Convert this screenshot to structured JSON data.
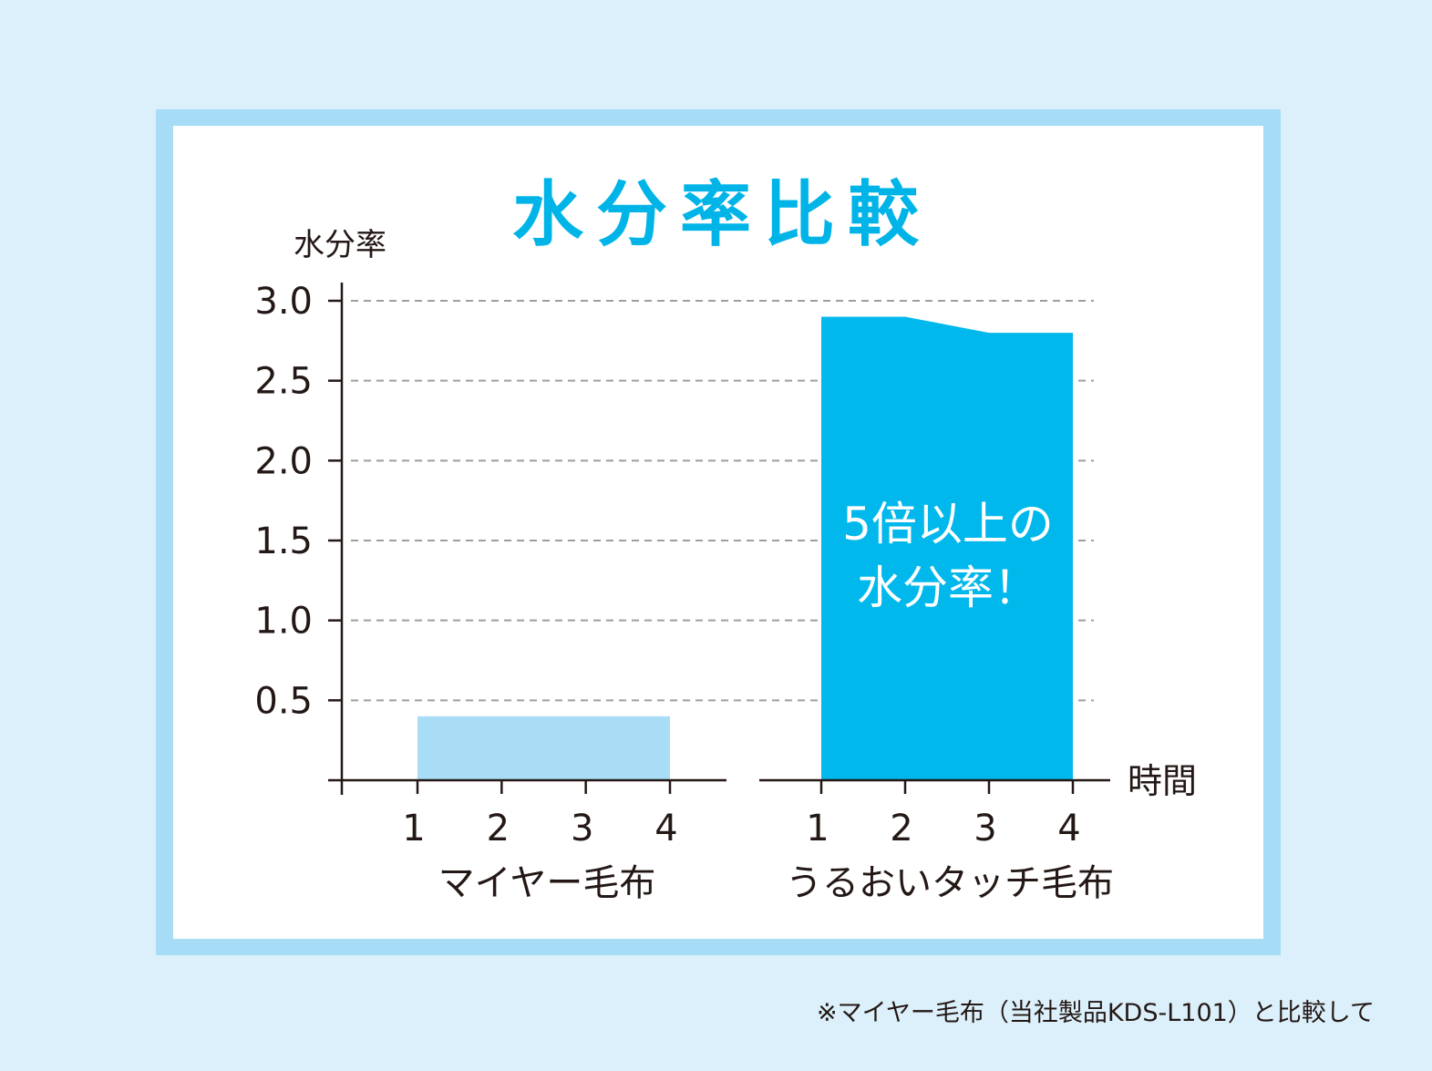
{
  "colors": {
    "background": "#dcf0fb",
    "frame": "#a6dcf6",
    "panel": "#ffffff",
    "title": "#00b4e8",
    "series_a": "#a9dcf5",
    "series_b": "#00b8ec",
    "axis": "#231815",
    "grid": "#9e9e9e"
  },
  "footnote": "※マイヤー毛布（当社製品KDS-L101）と比較して",
  "chart_data": {
    "type": "area",
    "title": "水分率比較",
    "ylabel": "水分率",
    "xlabel": "時間",
    "ylim": [
      0,
      3.0
    ],
    "yticks": [
      "3.0",
      "2.5",
      "2.0",
      "1.5",
      "1.0",
      "0.5"
    ],
    "ytick_values": [
      3.0,
      2.5,
      2.0,
      1.5,
      1.0,
      0.5
    ],
    "grid": true,
    "x": [
      1,
      2,
      3,
      4
    ],
    "xtick_labels": [
      "1",
      "2",
      "3",
      "4"
    ],
    "series": [
      {
        "name": "マイヤー毛布",
        "values": [
          0.4,
          0.4,
          0.4,
          0.4
        ]
      },
      {
        "name": "うるおいタッチ毛布",
        "values": [
          2.9,
          2.9,
          2.8,
          2.8
        ]
      }
    ],
    "annotation": {
      "line1": "5倍以上の",
      "line2": "水分率！"
    }
  }
}
